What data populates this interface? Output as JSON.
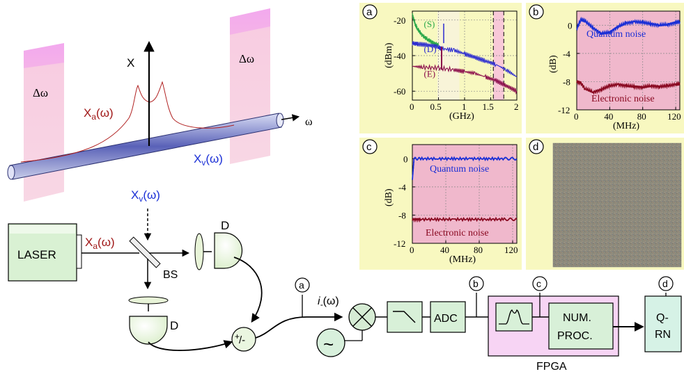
{
  "colors": {
    "panel_bg": "#f8f8c0",
    "plot_bg": "#f0b8cc",
    "quantum": "#1a2fd6",
    "electronic": "#8a0a22",
    "spectrum_s": "#2aa84a",
    "spectrum_d": "#2a2ad0",
    "spectrum_e": "#8a0a4a",
    "band": "#f7c2da",
    "band_top": "#f5a6ee",
    "fpga": "#f8d4f4",
    "detector": "#e8f4d8",
    "laser": "#d8f0d0",
    "qrn": "#d4f2e4"
  },
  "top_diagram": {
    "x_axis_label": "X",
    "omega_label": "ω",
    "delta_omega_left": "Δω",
    "delta_omega_right": "Δω",
    "xa_label": "X",
    "xa_sub": "a",
    "xa_arg": "(ω)",
    "xv_label": "X",
    "xv_sub": "v",
    "xv_arg": "(ω)"
  },
  "setup": {
    "laser_label": "LASER",
    "xa_label": "X",
    "xa_sub": "a",
    "xa_arg": "(ω)",
    "xv_label": "X",
    "xv_sub": "v",
    "xv_arg": "(ω)",
    "bs_label": "BS",
    "detector_top_label": "D",
    "detector_bottom_label": "D",
    "sum_plus": "+",
    "sum_minus": "/-",
    "current_label": "i",
    "current_sub": "-",
    "current_arg": "(ω)",
    "lo_symbol": "~",
    "adc_label": "ADC",
    "fpga_label": "FPGA",
    "num_proc_line1": "NUM.",
    "num_proc_line2": "PROC.",
    "qrn_line1": "Q-",
    "qrn_line2": "RN",
    "tap_a": "a",
    "tap_b": "b",
    "tap_c": "c",
    "tap_d": "d"
  },
  "panels": {
    "a": {
      "letter": "a"
    },
    "b": {
      "letter": "b"
    },
    "c": {
      "letter": "c"
    },
    "d": {
      "letter": "d"
    }
  },
  "chart_data": [
    {
      "id": "a",
      "type": "line",
      "xlabel": "(GHz)",
      "ylabel": "(dBm)",
      "xlim": [
        0,
        2
      ],
      "ylim": [
        -65,
        -15
      ],
      "xticks": [
        "0",
        "0.5",
        "1",
        "1.5",
        "2"
      ],
      "yticks": [
        "-20",
        "-40",
        "-60"
      ],
      "grid": true,
      "annotations": [
        "(S)",
        "(D)",
        "(E)"
      ],
      "series": [
        {
          "name": "(S)",
          "x": [
            0,
            0.05,
            0.1,
            0.2,
            0.3,
            0.4,
            0.5
          ],
          "y": [
            -17,
            -22,
            -25,
            -29,
            -31,
            -33,
            -34
          ]
        },
        {
          "name": "(D)",
          "x": [
            0,
            0.1,
            0.3,
            0.5,
            0.55,
            0.8,
            1.0,
            1.2,
            1.4,
            1.6,
            1.8,
            2.0
          ],
          "y": [
            -33,
            -33.5,
            -34,
            -35,
            -36,
            -37,
            -39,
            -41,
            -43,
            -45,
            -48,
            -52
          ]
        },
        {
          "name": "(E)",
          "x": [
            0,
            0.2,
            0.5,
            0.8,
            1.0,
            1.2,
            1.4,
            1.6,
            1.8,
            2.0
          ],
          "y": [
            -46,
            -46.5,
            -47,
            -48,
            -49,
            -50,
            -52,
            -54,
            -57,
            -60
          ]
        }
      ]
    },
    {
      "id": "b",
      "type": "line",
      "xlabel": "(MHz)",
      "ylabel": "(dB)",
      "xlim": [
        0,
        125
      ],
      "ylim": [
        -12,
        2
      ],
      "xticks": [
        "0",
        "40",
        "80",
        "120"
      ],
      "yticks": [
        "0",
        "-4",
        "-8",
        "-12"
      ],
      "grid": true,
      "series": [
        {
          "name": "Quantum noise",
          "x": [
            0,
            5,
            10,
            20,
            30,
            40,
            50,
            60,
            70,
            80,
            90,
            100,
            110,
            120,
            125
          ],
          "y": [
            -0.5,
            0.8,
            0.6,
            -0.4,
            -1.2,
            -1.0,
            -0.2,
            0.3,
            0.5,
            0.4,
            0.2,
            0.0,
            0.1,
            0.4,
            0.5
          ]
        },
        {
          "name": "Electronic noise",
          "x": [
            0,
            5,
            10,
            20,
            30,
            40,
            50,
            60,
            70,
            80,
            90,
            100,
            110,
            120,
            125
          ],
          "y": [
            -8.0,
            -8.2,
            -9.0,
            -9.5,
            -9.1,
            -8.6,
            -8.4,
            -8.6,
            -8.7,
            -8.8,
            -8.6,
            -8.7,
            -8.6,
            -8.4,
            -8.3
          ]
        }
      ]
    },
    {
      "id": "c",
      "type": "line",
      "xlabel": "(MHz)",
      "ylabel": "(dB)",
      "xlim": [
        0,
        125
      ],
      "ylim": [
        -12,
        2
      ],
      "xticks": [
        "0",
        "40",
        "80",
        "120"
      ],
      "yticks": [
        "0",
        "-4",
        "-8",
        "-12"
      ],
      "grid": true,
      "series": [
        {
          "name": "Quantum noise",
          "x": [
            0,
            2,
            10,
            30,
            50,
            70,
            90,
            110,
            125
          ],
          "y": [
            -3,
            0,
            0,
            0,
            0,
            0,
            0,
            0,
            0
          ]
        },
        {
          "name": "Electronic noise",
          "x": [
            0,
            10,
            30,
            50,
            70,
            90,
            110,
            125
          ],
          "y": [
            -8.6,
            -8.6,
            -8.6,
            -8.6,
            -8.6,
            -8.6,
            -8.6,
            -8.6
          ]
        }
      ]
    }
  ]
}
